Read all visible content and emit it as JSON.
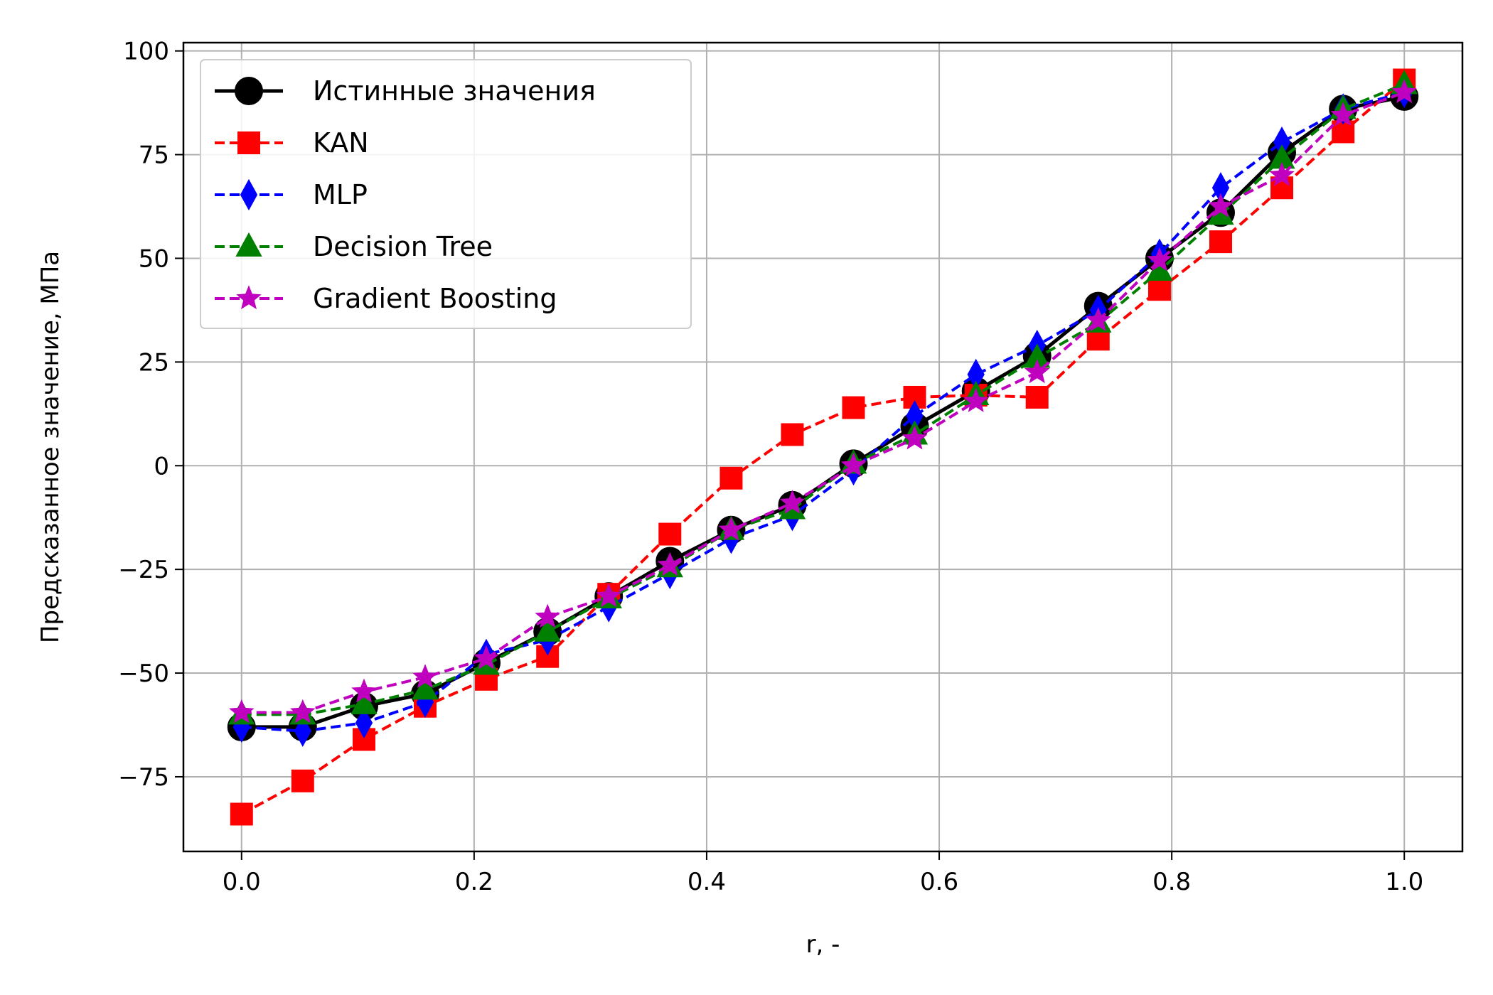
{
  "chart_data": {
    "type": "line",
    "title": "",
    "xlabel": "r, -",
    "ylabel": "Предсказанное значение, МПа",
    "xlim": [
      -0.05,
      1.05
    ],
    "ylim": [
      -93,
      102
    ],
    "xticks": [
      0.0,
      0.2,
      0.4,
      0.6,
      0.8,
      1.0
    ],
    "xtick_labels": [
      "0.0",
      "0.2",
      "0.4",
      "0.6",
      "0.8",
      "1.0"
    ],
    "yticks": [
      -75,
      -50,
      -25,
      0,
      25,
      50,
      75,
      100
    ],
    "ytick_labels": [
      "−75",
      "−50",
      "−25",
      "0",
      "25",
      "50",
      "75",
      "100"
    ],
    "grid": true,
    "legend_position": "top-left",
    "x": [
      0.0,
      0.0526,
      0.1053,
      0.1579,
      0.2105,
      0.2632,
      0.3158,
      0.3684,
      0.4211,
      0.4737,
      0.5263,
      0.5789,
      0.6316,
      0.6842,
      0.7368,
      0.7895,
      0.8421,
      0.8947,
      0.9474,
      1.0
    ],
    "series": [
      {
        "name": "Истинные значения",
        "color": "#000000",
        "marker": "circle",
        "line_style": "solid",
        "values": [
          -63,
          -63,
          -58,
          -55,
          -47.5,
          -40,
          -31.5,
          -23,
          -15.5,
          -9.5,
          0.5,
          9.5,
          18,
          26.5,
          38.5,
          50,
          61,
          75.5,
          86,
          89
        ]
      },
      {
        "name": "KAN",
        "color": "#ff0000",
        "marker": "square",
        "line_style": "dashed",
        "values": [
          -84,
          -76,
          -66,
          -58,
          -51.5,
          -46,
          -31,
          -16.5,
          -3,
          7.5,
          14,
          16.5,
          17,
          16.5,
          30.5,
          42.5,
          54,
          67,
          80.5,
          93
        ]
      },
      {
        "name": "MLP",
        "color": "#0000ff",
        "marker": "thin_diamond",
        "line_style": "dashed",
        "values": [
          -63,
          -64,
          -62,
          -57,
          -45.5,
          -42,
          -34,
          -26,
          -17.5,
          -12,
          -1,
          12,
          22,
          29,
          37.5,
          51,
          67,
          78,
          86,
          90
        ]
      },
      {
        "name": "Decision Tree",
        "color": "#008000",
        "marker": "triangle",
        "line_style": "dashed",
        "values": [
          -60,
          -60,
          -57.5,
          -54,
          -48,
          -40,
          -32,
          -24.5,
          -15.5,
          -10.5,
          0.5,
          7.5,
          17,
          26,
          34.5,
          47,
          60.5,
          74,
          86,
          92
        ]
      },
      {
        "name": "Gradient Boosting",
        "color": "#bf00bf",
        "marker": "star",
        "line_style": "dashed",
        "values": [
          -59.5,
          -59.5,
          -54.5,
          -51,
          -46.5,
          -36.5,
          -31.5,
          -24,
          -15.5,
          -9,
          0,
          6.5,
          15.5,
          22.5,
          35,
          49.5,
          62.5,
          70,
          84.5,
          90
        ]
      }
    ]
  }
}
